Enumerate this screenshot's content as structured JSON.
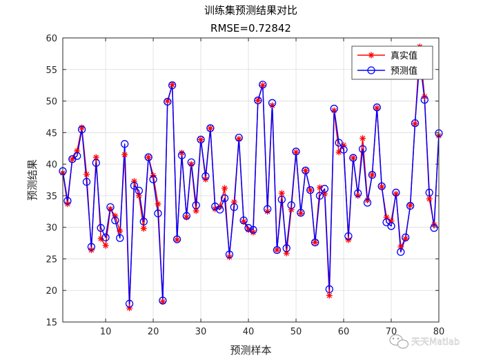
{
  "chart_data": {
    "type": "line",
    "title": "训练集预测结果对比",
    "subtitle": "RMSE=0.72842",
    "xlabel": "预测样本",
    "ylabel": "预测结果",
    "xlim": [
      1,
      80
    ],
    "ylim": [
      15,
      60
    ],
    "xticks": [
      10,
      20,
      30,
      40,
      50,
      60,
      70,
      80
    ],
    "yticks": [
      15,
      20,
      25,
      30,
      35,
      40,
      45,
      50,
      55,
      60
    ],
    "grid": true,
    "legend_position": "top-right",
    "x": [
      1,
      2,
      3,
      4,
      5,
      6,
      7,
      8,
      9,
      10,
      11,
      12,
      13,
      14,
      15,
      16,
      17,
      18,
      19,
      20,
      21,
      22,
      23,
      24,
      25,
      26,
      27,
      28,
      29,
      30,
      31,
      32,
      33,
      34,
      35,
      36,
      37,
      38,
      39,
      40,
      41,
      42,
      43,
      44,
      45,
      46,
      47,
      48,
      49,
      50,
      51,
      52,
      53,
      54,
      55,
      56,
      57,
      58,
      59,
      60,
      61,
      62,
      63,
      64,
      65,
      66,
      67,
      68,
      69,
      70,
      71,
      72,
      73,
      74,
      75,
      76,
      77,
      78,
      79,
      80
    ],
    "series": [
      {
        "name": "真实值",
        "color": "#ff0000",
        "marker": "asterisk",
        "values": [
          38.6,
          33.7,
          40.8,
          42.1,
          45.8,
          38.4,
          26.4,
          41.1,
          28.2,
          27.1,
          32.9,
          31.8,
          29.4,
          41.5,
          17.2,
          37.3,
          35.0,
          29.8,
          41.1,
          38.2,
          33.7,
          18.2,
          50.0,
          52.6,
          28.0,
          41.8,
          31.6,
          40.0,
          32.6,
          43.9,
          37.6,
          45.7,
          32.9,
          33.3,
          36.2,
          25.3,
          34.0,
          44.0,
          30.9,
          29.6,
          29.2,
          50.1,
          52.5,
          32.5,
          49.3,
          26.4,
          35.4,
          25.9,
          32.8,
          41.9,
          32.2,
          39.0,
          35.9,
          27.6,
          36.3,
          35.3,
          19.2,
          48.5,
          41.9,
          43.0,
          28.0,
          41.0,
          35.0,
          44.1,
          34.3,
          38.3,
          48.9,
          36.4,
          31.6,
          31.0,
          35.3,
          26.9,
          28.2,
          33.5,
          46.4,
          58.6,
          50.7,
          34.5,
          30.4,
          44.5
        ]
      },
      {
        "name": "预测值",
        "color": "#0000ff",
        "marker": "circle",
        "values": [
          38.9,
          34.2,
          40.8,
          41.3,
          45.5,
          37.2,
          26.9,
          40.2,
          29.9,
          28.4,
          33.2,
          31.1,
          28.3,
          43.2,
          17.9,
          36.6,
          35.8,
          30.9,
          41.1,
          37.6,
          32.2,
          18.4,
          49.9,
          52.5,
          28.1,
          41.4,
          31.8,
          40.3,
          33.5,
          43.9,
          38.1,
          45.7,
          33.3,
          32.8,
          34.6,
          25.7,
          33.2,
          44.2,
          31.1,
          29.9,
          29.6,
          50.1,
          52.6,
          32.9,
          49.7,
          26.4,
          34.4,
          26.7,
          33.5,
          42.0,
          32.3,
          39.0,
          35.9,
          27.6,
          35.0,
          36.1,
          20.2,
          48.8,
          43.4,
          42.3,
          28.6,
          41.0,
          35.4,
          42.4,
          33.9,
          38.3,
          49.0,
          36.5,
          30.8,
          30.2,
          35.5,
          26.1,
          28.4,
          33.4,
          46.5,
          56.6,
          50.2,
          35.5,
          29.9,
          44.9
        ]
      }
    ]
  },
  "watermark": "天天Matlab"
}
